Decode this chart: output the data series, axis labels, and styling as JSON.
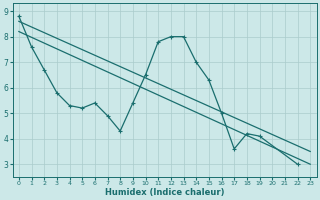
{
  "xlabel": "Humidex (Indice chaleur)",
  "bg_color": "#cce8e8",
  "grid_color": "#aacccc",
  "line_color": "#1a6e6e",
  "xlim": [
    -0.5,
    23.5
  ],
  "ylim": [
    2.5,
    9.3
  ],
  "xticks": [
    0,
    1,
    2,
    3,
    4,
    5,
    6,
    7,
    8,
    9,
    10,
    11,
    12,
    13,
    14,
    15,
    16,
    17,
    18,
    19,
    20,
    21,
    22,
    23
  ],
  "yticks": [
    3,
    4,
    5,
    6,
    7,
    8,
    9
  ],
  "series_main": {
    "x": [
      0,
      1,
      2,
      3,
      4,
      5,
      6,
      7,
      8,
      9,
      10,
      11,
      12,
      13,
      14,
      15,
      16,
      17,
      18,
      19,
      22
    ],
    "y": [
      8.8,
      7.6,
      6.7,
      5.8,
      5.3,
      5.2,
      5.4,
      4.9,
      4.3,
      5.4,
      6.5,
      7.8,
      8.0,
      8.0,
      7.0,
      6.3,
      5.0,
      3.6,
      4.2,
      4.1,
      3.0
    ]
  },
  "line1": {
    "x": [
      0,
      23
    ],
    "y": [
      8.6,
      3.5
    ]
  },
  "line2": {
    "x": [
      0,
      23
    ],
    "y": [
      8.2,
      3.0
    ]
  }
}
